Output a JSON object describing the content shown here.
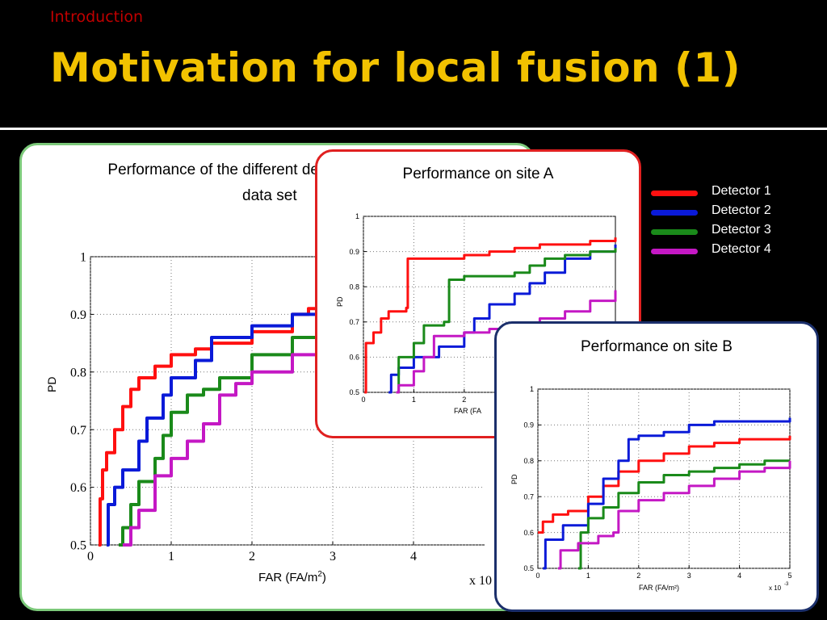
{
  "header": {
    "section": "Introduction",
    "title": "Motivation for local fusion (1)"
  },
  "legend": [
    {
      "label": "Detector 1",
      "color": "#ff1010"
    },
    {
      "label": "Detector 2",
      "color": "#0a1ad8"
    },
    {
      "label": "Detector 3",
      "color": "#1a8a1a"
    },
    {
      "label": "Detector 4",
      "color": "#c418c4"
    }
  ],
  "panels": {
    "main": {
      "title_line1": "Performance of the different de",
      "title_line2": "data set",
      "ylabel": "PD",
      "xlabel": "FAR (FA/m",
      "xlabel_sup": "2",
      "xlabel_end": ")",
      "x_multiplier": "x 10"
    },
    "site_a": {
      "title": "Performance on site A",
      "ylabel": "PD",
      "xlabel": "FAR (FA"
    },
    "site_b": {
      "title": "Performance on site B",
      "ylabel": "PD",
      "xlabel": "FAR (FA/m²)",
      "x_multiplier": "x 10",
      "x_multiplier_exp": "-3"
    }
  },
  "chart_data": [
    {
      "id": "main",
      "type": "line",
      "title": "",
      "xlabel": "FAR (FA/m2)",
      "ylabel": "PD",
      "xlim": [
        0,
        5
      ],
      "ylim": [
        0.5,
        1
      ],
      "xticks": [
        0,
        1,
        2,
        3,
        4
      ],
      "yticks": [
        0.5,
        0.6,
        0.7,
        0.8,
        0.9,
        1
      ],
      "ytick_labels": [
        "0.5",
        "0.6",
        "0.7",
        "0.8",
        "0.9",
        "1"
      ],
      "grid": true,
      "series": [
        {
          "name": "Detector 1",
          "color": "#ff1010",
          "x": [
            0.1,
            0.12,
            0.15,
            0.2,
            0.3,
            0.4,
            0.5,
            0.6,
            0.8,
            1.0,
            1.3,
            1.5,
            2.0,
            2.5,
            2.7,
            2.9
          ],
          "y": [
            0.5,
            0.58,
            0.63,
            0.66,
            0.7,
            0.74,
            0.77,
            0.79,
            0.81,
            0.83,
            0.84,
            0.85,
            0.87,
            0.9,
            0.91,
            0.91
          ]
        },
        {
          "name": "Detector 2",
          "color": "#0a1ad8",
          "x": [
            0.2,
            0.22,
            0.3,
            0.4,
            0.6,
            0.7,
            0.9,
            1.0,
            1.3,
            1.5,
            2.0,
            2.5,
            2.9
          ],
          "y": [
            0.5,
            0.57,
            0.6,
            0.63,
            0.68,
            0.72,
            0.76,
            0.79,
            0.82,
            0.86,
            0.88,
            0.9,
            0.91
          ]
        },
        {
          "name": "Detector 3",
          "color": "#1a8a1a",
          "x": [
            0.35,
            0.4,
            0.5,
            0.6,
            0.8,
            0.9,
            1.0,
            1.2,
            1.4,
            1.6,
            2.0,
            2.5,
            2.9
          ],
          "y": [
            0.5,
            0.53,
            0.57,
            0.61,
            0.65,
            0.69,
            0.73,
            0.76,
            0.77,
            0.79,
            0.83,
            0.86,
            0.87
          ]
        },
        {
          "name": "Detector 4",
          "color": "#c418c4",
          "x": [
            0.4,
            0.5,
            0.6,
            0.8,
            1.0,
            1.2,
            1.4,
            1.6,
            1.8,
            2.0,
            2.5,
            2.9
          ],
          "y": [
            0.5,
            0.53,
            0.56,
            0.62,
            0.65,
            0.68,
            0.71,
            0.76,
            0.78,
            0.8,
            0.83,
            0.85
          ]
        }
      ]
    },
    {
      "id": "site_a",
      "type": "line",
      "title": "Performance on site A",
      "xlabel": "FAR (FA",
      "ylabel": "PD",
      "xlim": [
        0,
        5
      ],
      "ylim": [
        0.5,
        1
      ],
      "xticks": [
        0,
        1,
        2
      ],
      "yticks": [
        0.5,
        0.6,
        0.7,
        0.8,
        0.9,
        1
      ],
      "ytick_labels": [
        "0.5",
        "0.6",
        "0.7",
        "0.8",
        "0.9",
        "1"
      ],
      "grid": true,
      "series": [
        {
          "name": "Detector 1",
          "color": "#ff1010",
          "x": [
            0.02,
            0.05,
            0.2,
            0.35,
            0.5,
            0.85,
            0.88,
            1.5,
            2.0,
            2.5,
            3.0,
            3.5,
            4.0,
            4.5,
            5.0
          ],
          "y": [
            0.5,
            0.64,
            0.67,
            0.71,
            0.73,
            0.74,
            0.88,
            0.88,
            0.89,
            0.9,
            0.91,
            0.92,
            0.92,
            0.93,
            0.94
          ]
        },
        {
          "name": "Detector 2",
          "color": "#0a1ad8",
          "x": [
            0.5,
            0.55,
            0.7,
            1.0,
            1.5,
            2.0,
            2.2,
            2.5,
            3.0,
            3.3,
            3.6,
            4.0,
            4.5,
            5.0
          ],
          "y": [
            0.5,
            0.55,
            0.57,
            0.6,
            0.63,
            0.67,
            0.71,
            0.75,
            0.78,
            0.81,
            0.84,
            0.88,
            0.9,
            0.92
          ]
        },
        {
          "name": "Detector 3",
          "color": "#1a8a1a",
          "x": [
            0.65,
            0.7,
            1.0,
            1.2,
            1.6,
            1.7,
            2.0,
            2.5,
            3.0,
            3.3,
            3.6,
            4.0,
            4.5,
            5.0
          ],
          "y": [
            0.5,
            0.6,
            0.64,
            0.69,
            0.7,
            0.82,
            0.83,
            0.83,
            0.84,
            0.86,
            0.88,
            0.89,
            0.9,
            0.91
          ]
        },
        {
          "name": "Detector 4",
          "color": "#c418c4",
          "x": [
            0.65,
            0.7,
            1.0,
            1.2,
            1.4,
            2.0,
            2.5,
            3.0,
            3.5,
            4.0,
            4.5,
            5.0
          ],
          "y": [
            0.5,
            0.52,
            0.56,
            0.6,
            0.66,
            0.67,
            0.68,
            0.69,
            0.71,
            0.73,
            0.76,
            0.79
          ]
        }
      ]
    },
    {
      "id": "site_b",
      "type": "line",
      "title": "Performance on site B",
      "xlabel": "FAR (FA/m²)",
      "ylabel": "PD",
      "xlim": [
        0,
        5
      ],
      "ylim": [
        0.5,
        1
      ],
      "xticks": [
        0,
        1,
        2,
        3,
        4,
        5
      ],
      "yticks": [
        0.5,
        0.6,
        0.7,
        0.8,
        0.9,
        1
      ],
      "ytick_labels": [
        "0.5",
        "0.6",
        "0.7",
        "0.8",
        "0.9",
        "1"
      ],
      "grid": true,
      "series": [
        {
          "name": "Detector 1",
          "color": "#ff1010",
          "x": [
            0.0,
            0.1,
            0.3,
            0.6,
            1.0,
            1.3,
            1.6,
            2.0,
            2.5,
            3.0,
            3.5,
            4.0,
            4.5,
            5.0
          ],
          "y": [
            0.6,
            0.63,
            0.65,
            0.66,
            0.7,
            0.73,
            0.77,
            0.8,
            0.82,
            0.84,
            0.85,
            0.86,
            0.86,
            0.87
          ]
        },
        {
          "name": "Detector 2",
          "color": "#0a1ad8",
          "x": [
            0.1,
            0.15,
            0.5,
            1.0,
            1.3,
            1.6,
            1.8,
            2.0,
            2.5,
            3.0,
            3.5,
            4.0,
            4.5,
            5.0
          ],
          "y": [
            0.5,
            0.58,
            0.62,
            0.68,
            0.75,
            0.8,
            0.86,
            0.87,
            0.88,
            0.9,
            0.91,
            0.91,
            0.91,
            0.92
          ]
        },
        {
          "name": "Detector 3",
          "color": "#1a8a1a",
          "x": [
            0.8,
            0.85,
            1.0,
            1.3,
            1.6,
            2.0,
            2.5,
            3.0,
            3.5,
            4.0,
            4.5,
            5.0
          ],
          "y": [
            0.5,
            0.6,
            0.64,
            0.67,
            0.71,
            0.74,
            0.76,
            0.77,
            0.78,
            0.79,
            0.8,
            0.8
          ]
        },
        {
          "name": "Detector 4",
          "color": "#c418c4",
          "x": [
            0.4,
            0.45,
            0.8,
            1.2,
            1.5,
            1.6,
            2.0,
            2.5,
            3.0,
            3.5,
            4.0,
            4.5,
            5.0
          ],
          "y": [
            0.5,
            0.55,
            0.57,
            0.59,
            0.6,
            0.66,
            0.69,
            0.71,
            0.73,
            0.75,
            0.77,
            0.78,
            0.8
          ]
        }
      ]
    }
  ]
}
